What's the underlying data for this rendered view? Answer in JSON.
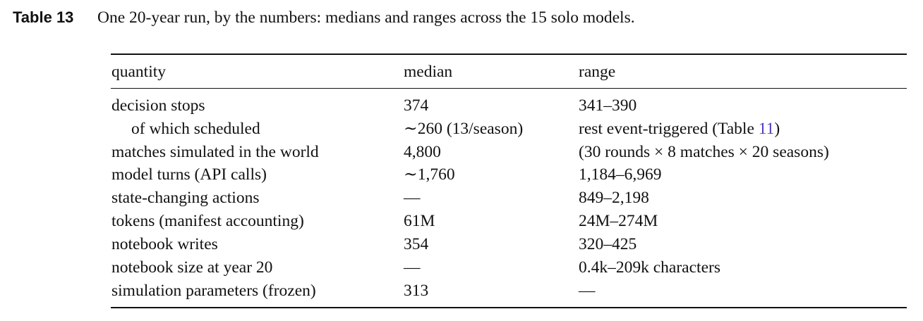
{
  "caption": {
    "label": "Table 13",
    "text": "One 20-year run, by the numbers: medians and ranges across the 15 solo models."
  },
  "table": {
    "header": [
      "quantity",
      "median",
      "range"
    ],
    "rows": [
      [
        "decision stops",
        "374",
        "341–390"
      ],
      [
        "of which scheduled",
        "∼260 (13/season)",
        {
          "text": "rest event-triggered (Table ",
          "ref": "11",
          "after": ")"
        }
      ],
      [
        "matches simulated in the world",
        "4,800",
        "(30 rounds × 8 matches × 20 seasons)"
      ],
      [
        "model turns (API calls)",
        "∼1,760",
        "1,184–6,969"
      ],
      [
        "state-changing actions",
        "—",
        "849–2,198"
      ],
      [
        "tokens (manifest accounting)",
        "61M",
        "24M–274M"
      ],
      [
        "notebook writes",
        "354",
        "320–425"
      ],
      [
        "notebook size at year 20",
        "—",
        "0.4k–209k characters"
      ],
      [
        "simulation parameters (frozen)",
        "313",
        "—"
      ]
    ]
  }
}
